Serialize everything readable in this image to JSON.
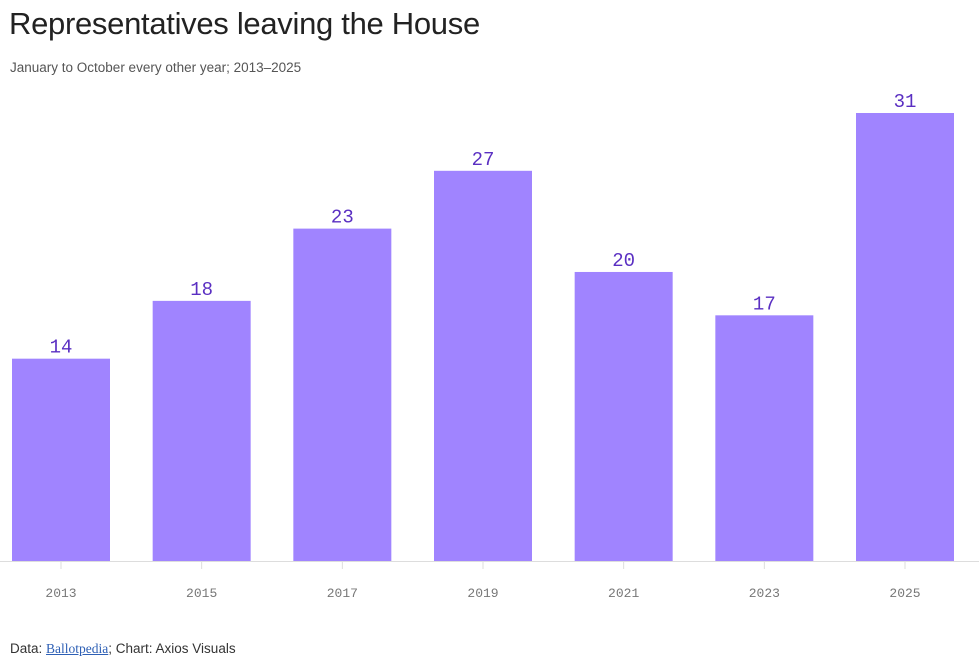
{
  "header": {
    "title": "Representatives leaving the House",
    "subtitle": "January to October every other year; 2013–2025"
  },
  "footer": {
    "data_prefix": "Data: ",
    "source_link": "Ballotpedia",
    "credit": "; Chart: Axios Visuals"
  },
  "colors": {
    "bar": "#a084ff",
    "value_label": "#5a2fc2",
    "tick_label": "#777777",
    "axis_line": "#dddddd"
  },
  "chart_data": {
    "type": "bar",
    "title": "Representatives leaving the House",
    "subtitle": "January to October every other year; 2013–2025",
    "xlabel": "",
    "ylabel": "",
    "categories": [
      "2013",
      "2015",
      "2017",
      "2019",
      "2021",
      "2023",
      "2025"
    ],
    "values": [
      14,
      18,
      23,
      27,
      20,
      17,
      31
    ],
    "ylim": [
      0,
      31
    ],
    "grid": false,
    "legend": "none"
  }
}
